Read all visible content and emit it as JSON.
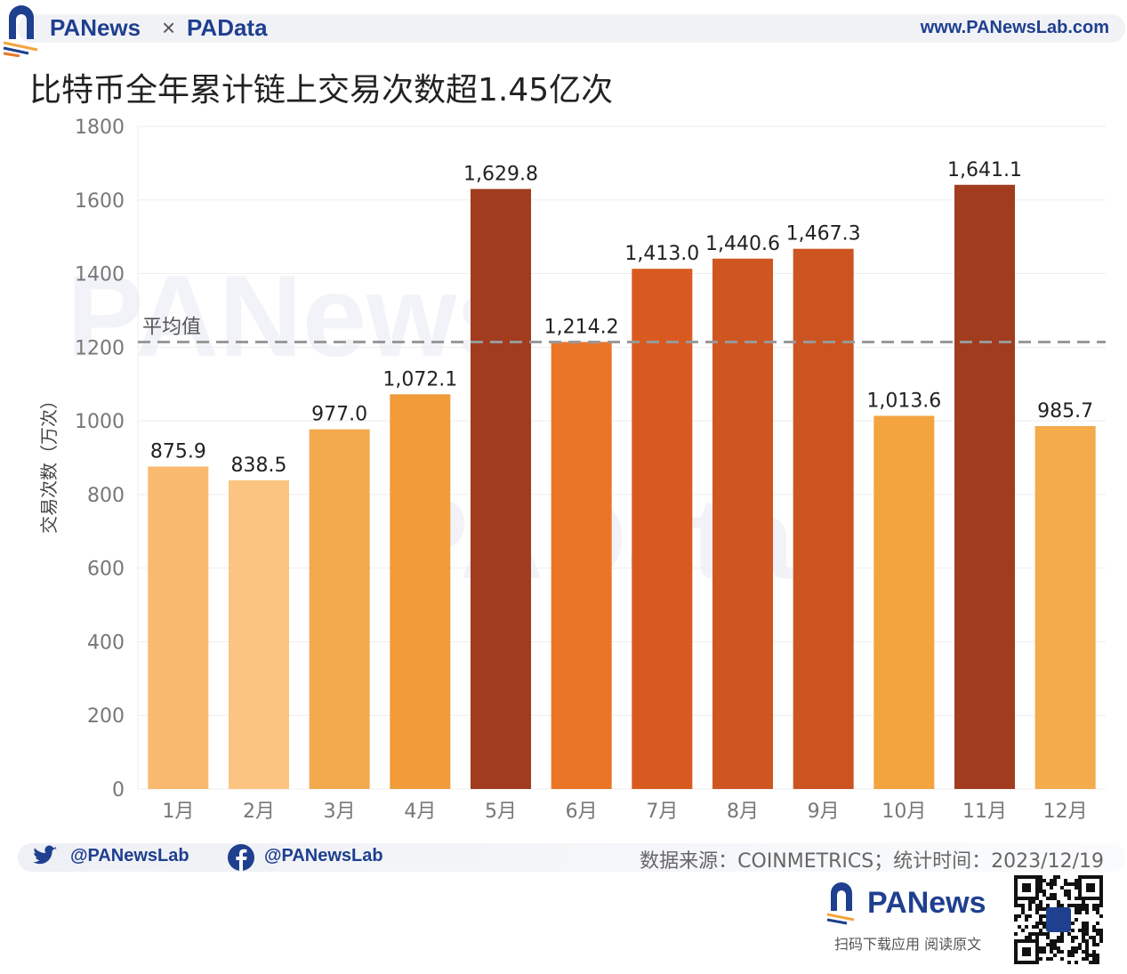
{
  "header": {
    "brand_left": "PANews",
    "times": "×",
    "brand_right": "PAData",
    "url": "www.PANewsLab.com"
  },
  "watermarks": [
    "PANews",
    "PAData"
  ],
  "footer": {
    "twitter": "@PANewsLab",
    "facebook": "@PANewsLab",
    "source": "数据来源：COINMETRICS；统计时间：2023/12/19",
    "logo": "PANews",
    "cta": "扫码下载应用  阅读原文",
    "icons": [
      "twitter-icon",
      "facebook-icon",
      "qr-code"
    ]
  },
  "chart_data": {
    "type": "bar",
    "title": "比特币全年累计链上交易次数超1.45亿次",
    "ylabel": "交易次数（万次）",
    "xlabel": "",
    "ylim": [
      0,
      1800
    ],
    "yticks": [
      0,
      200,
      400,
      600,
      800,
      1000,
      1200,
      1400,
      1600,
      1800
    ],
    "grid": true,
    "categories": [
      "1月",
      "2月",
      "3月",
      "4月",
      "5月",
      "6月",
      "7月",
      "8月",
      "9月",
      "10月",
      "11月",
      "12月"
    ],
    "values": [
      875.9,
      838.5,
      977.0,
      1072.1,
      1629.8,
      1214.2,
      1413.0,
      1440.6,
      1467.3,
      1013.6,
      1641.1,
      985.7
    ],
    "data_labels": [
      "875.9",
      "838.5",
      "977.0",
      "1,072.1",
      "1,629.8",
      "1,214.2",
      "1,413.0",
      "1,440.6",
      "1,467.3",
      "1,013.6",
      "1,641.1",
      "985.7"
    ],
    "colors": [
      "#f9b96e",
      "#fbc481",
      "#f3aa4c",
      "#f19b3b",
      "#a13c1f",
      "#eb7526",
      "#d95a20",
      "#cf5621",
      "#cc5421",
      "#f3a43f",
      "#a13c1f",
      "#f3ab4c"
    ],
    "reference_line": {
      "label": "平均值",
      "value": 1214.2,
      "style": "dashed",
      "color": "#999999"
    }
  }
}
